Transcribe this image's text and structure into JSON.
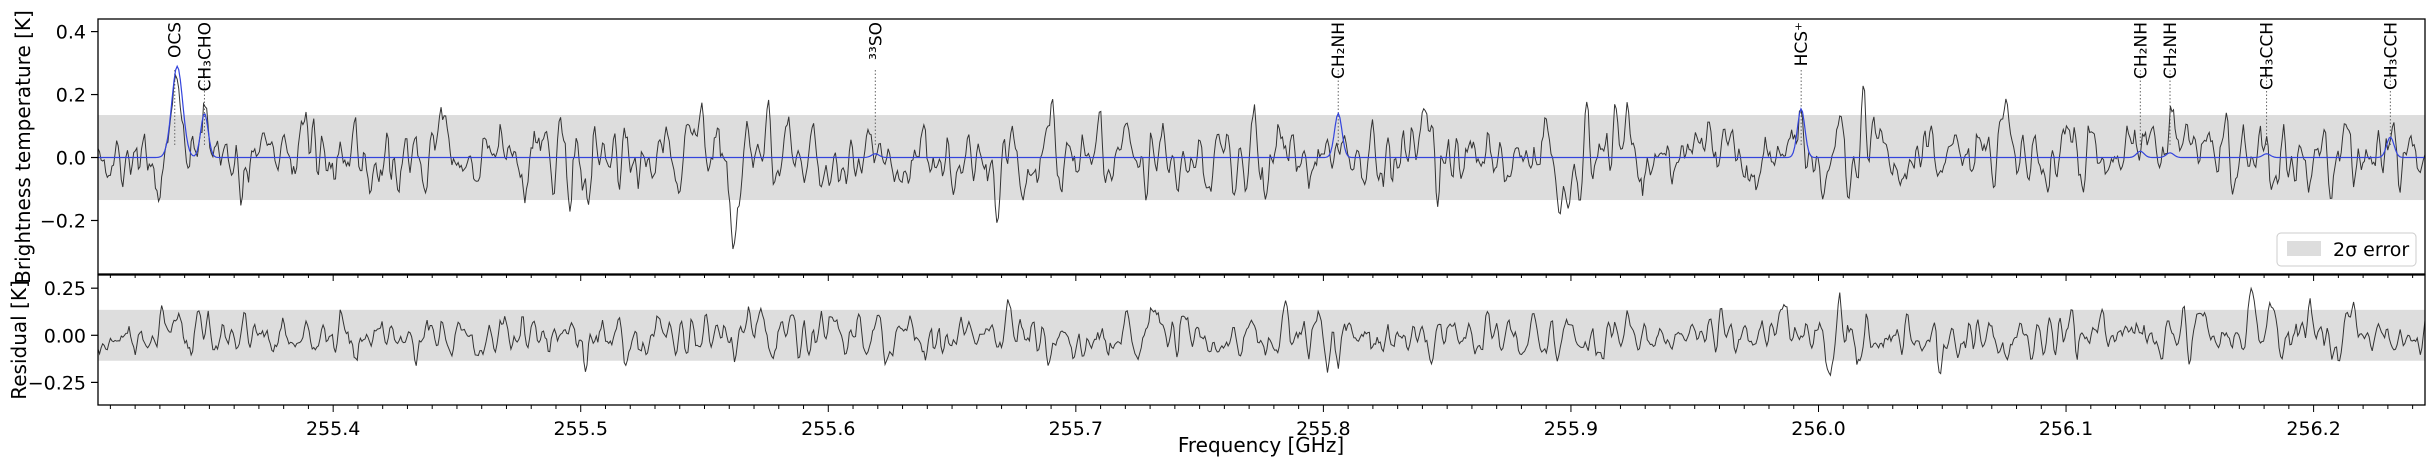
{
  "chart_data": [
    {
      "type": "line",
      "panel": "spectrum",
      "ylabel": "Brightness temperature [K]",
      "xlim": [
        255.305,
        256.245
      ],
      "ylim": [
        -0.37,
        0.44
      ],
      "yticks": [
        -0.2,
        0.0,
        0.2,
        0.4
      ],
      "ytick_labels": [
        "−0.2",
        "0.0",
        "0.2",
        "0.4"
      ],
      "error_band": {
        "label": "2σ error",
        "y": [
          -0.135,
          0.135
        ],
        "color": "#dddddd"
      },
      "legend_location": "lower-right",
      "series": [
        {
          "style": "observed",
          "color": "#333333",
          "noise_rms": 0.06,
          "peaks": [
            {
              "x": 255.34,
              "y": 0.3
            },
            {
              "x": 255.348,
              "y": 0.15
            },
            {
              "x": 255.806,
              "y": 0.15
            },
            {
              "x": 255.993,
              "y": 0.16
            },
            {
              "x": 256.232,
              "y": 0.16
            }
          ],
          "dips": [
            {
              "x": 255.562,
              "y": -0.22
            }
          ]
        },
        {
          "style": "model",
          "color": "#3344dd",
          "peaks": [
            {
              "x": 255.337,
              "y": 0.29,
              "width": 0.0022
            },
            {
              "x": 255.348,
              "y": 0.14,
              "width": 0.0015
            },
            {
              "x": 255.619,
              "y": 0.012,
              "width": 0.0015
            },
            {
              "x": 255.806,
              "y": 0.14,
              "width": 0.0015
            },
            {
              "x": 255.993,
              "y": 0.155,
              "width": 0.0015
            },
            {
              "x": 256.13,
              "y": 0.02,
              "width": 0.0015
            },
            {
              "x": 256.142,
              "y": 0.015,
              "width": 0.0015
            },
            {
              "x": 256.181,
              "y": 0.012,
              "width": 0.0015
            },
            {
              "x": 256.231,
              "y": 0.065,
              "width": 0.0015
            }
          ]
        }
      ],
      "line_markers": [
        {
          "x": 255.336,
          "label": "OCS"
        },
        {
          "x": 255.348,
          "label": "CH₃CHO"
        },
        {
          "x": 255.619,
          "label": "³³SO"
        },
        {
          "x": 255.806,
          "label": "CH₂NH"
        },
        {
          "x": 255.993,
          "label": "HCS⁺"
        },
        {
          "x": 256.13,
          "label": "CH₂NH"
        },
        {
          "x": 256.142,
          "label": "CH₂NH"
        },
        {
          "x": 256.181,
          "label": "CH₃CCH"
        },
        {
          "x": 256.231,
          "label": "CH₃CCH"
        }
      ]
    },
    {
      "type": "line",
      "panel": "residual",
      "ylabel": "Residual [K]",
      "xlabel": "Frequency [GHz]",
      "xlim": [
        255.305,
        256.245
      ],
      "ylim": [
        -0.37,
        0.32
      ],
      "yticks": [
        -0.25,
        0.0,
        0.25
      ],
      "ytick_labels": [
        "−0.25",
        "0.00",
        "0.25"
      ],
      "xticks": [
        255.4,
        255.5,
        255.6,
        255.7,
        255.8,
        255.9,
        256.0,
        256.1,
        256.2
      ],
      "xtick_labels": [
        "255.4",
        "255.5",
        "255.6",
        "255.7",
        "255.8",
        "255.9",
        "256.0",
        "256.1",
        "256.2"
      ],
      "error_band": {
        "y": [
          -0.135,
          0.135
        ],
        "color": "#dddddd"
      },
      "series": [
        {
          "style": "residual",
          "color": "#333333",
          "noise_rms": 0.06,
          "peaks": [
            {
              "x": 255.35,
              "y": 0.2
            },
            {
              "x": 256.175,
              "y": 0.18
            }
          ],
          "dips": [
            {
              "x": 255.562,
              "y": -0.22
            },
            {
              "x": 255.806,
              "y": -0.22
            }
          ]
        }
      ]
    }
  ]
}
